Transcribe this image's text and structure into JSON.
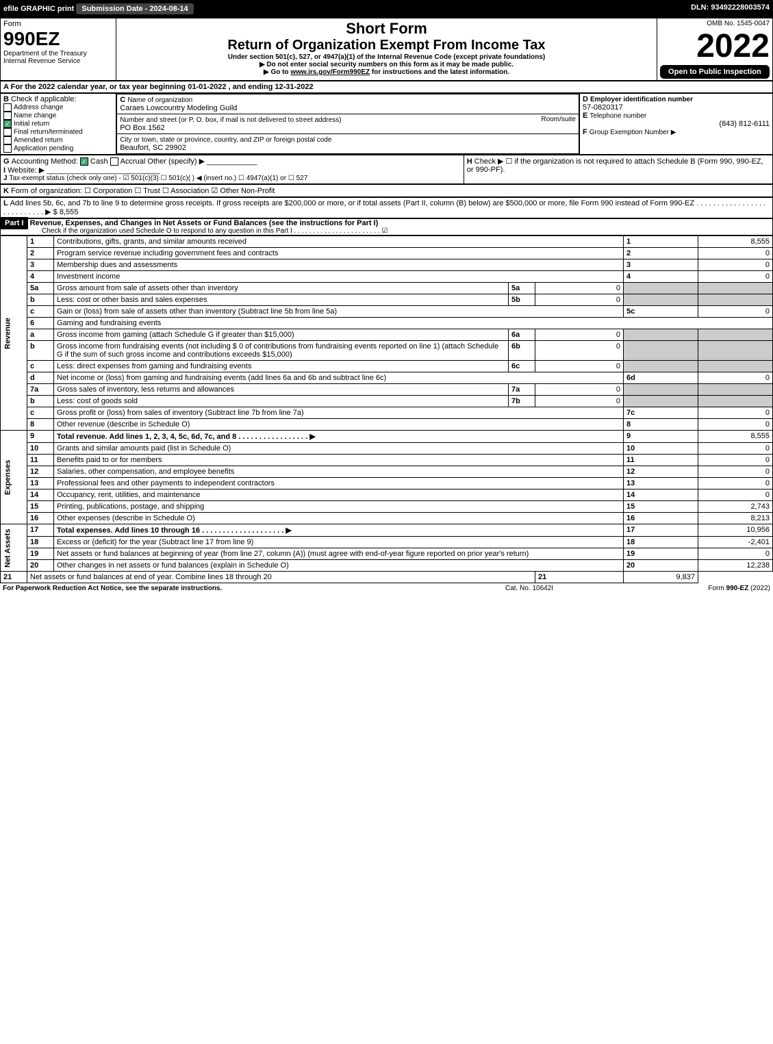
{
  "topbar": {
    "efile": "efile GRAPHIC print",
    "subdate": "Submission Date - 2024-08-14",
    "dln": "DLN: 93492228003574"
  },
  "header": {
    "form": "Form",
    "number": "990EZ",
    "dept": "Department of the Treasury",
    "irs": "Internal Revenue Service",
    "short": "Short Form",
    "title": "Return of Organization Exempt From Income Tax",
    "subtitle": "Under section 501(c), 527, or 4947(a)(1) of the Internal Revenue Code (except private foundations)",
    "warn1": "▶ Do not enter social security numbers on this form as it may be made public.",
    "warn2": "▶ Go to www.irs.gov/Form990EZ for instructions and the latest information.",
    "omb": "OMB No. 1545-0047",
    "year": "2022",
    "open": "Open to Public Inspection"
  },
  "A": "For the 2022 calendar year, or tax year beginning 01-01-2022 , and ending 12-31-2022",
  "B": {
    "label": "Check if applicable:",
    "opts": [
      "Address change",
      "Name change",
      "Initial return",
      "Final return/terminated",
      "Amended return",
      "Application pending"
    ],
    "checked": 2
  },
  "C": {
    "label": "Name of organization",
    "name": "Caraes Lowcountry Modeling Guild",
    "street_label": "Number and street (or P. O. box, if mail is not delivered to street address)",
    "street": "PO Box 1562",
    "room": "Room/suite",
    "city_label": "City or town, state or province, country, and ZIP or foreign postal code",
    "city": "Beaufort, SC  29902"
  },
  "D": {
    "label": "Employer identification number",
    "val": "57-0820317"
  },
  "E": {
    "label": "Telephone number",
    "val": "(843) 812-6111"
  },
  "F": {
    "label": "Group Exemption Number  ▶"
  },
  "G": {
    "label": "Accounting Method:",
    "cash": "Cash",
    "accrual": "Accrual",
    "other": "Other (specify) ▶"
  },
  "H": "Check ▶  ☐  if the organization is not required to attach Schedule B (Form 990, 990-EZ, or 990-PF).",
  "I": "Website: ▶",
  "J": "Tax-exempt status (check only one) - ☑ 501(c)(3) ☐ 501(c)(  ) ◀ (insert no.) ☐ 4947(a)(1) or ☐ 527",
  "K": "Form of organization:  ☐ Corporation  ☐ Trust  ☐ Association  ☑ Other Non-Profit",
  "L": "Add lines 5b, 6c, and 7b to line 9 to determine gross receipts. If gross receipts are $200,000 or more, or if total assets (Part II, column (B) below) are $500,000 or more, file Form 990 instead of Form 990-EZ  . . . . . . . . . . . . . . . . . . . . . . . . . . .  ▶ $ 8,555",
  "part1": {
    "title": "Revenue, Expenses, and Changes in Net Assets or Fund Balances (see the instructions for Part I)",
    "sub": "Check if the organization used Schedule O to respond to any question in this Part I . . . . . . . . . . . . . . . . . . . . . . .  ☑"
  },
  "sections": {
    "rev": "Revenue",
    "exp": "Expenses",
    "net": "Net Assets"
  },
  "lines": [
    {
      "n": "1",
      "t": "Contributions, gifts, grants, and similar amounts received",
      "r": "1",
      "v": "8,555"
    },
    {
      "n": "2",
      "t": "Program service revenue including government fees and contracts",
      "r": "2",
      "v": "0"
    },
    {
      "n": "3",
      "t": "Membership dues and assessments",
      "r": "3",
      "v": "0"
    },
    {
      "n": "4",
      "t": "Investment income",
      "r": "4",
      "v": "0"
    },
    {
      "n": "5a",
      "t": "Gross amount from sale of assets other than inventory",
      "mid": "5a",
      "mv": "0"
    },
    {
      "n": "b",
      "t": "Less: cost or other basis and sales expenses",
      "mid": "5b",
      "mv": "0"
    },
    {
      "n": "c",
      "t": "Gain or (loss) from sale of assets other than inventory (Subtract line 5b from line 5a)",
      "r": "5c",
      "v": "0"
    },
    {
      "n": "6",
      "t": "Gaming and fundraising events"
    },
    {
      "n": "a",
      "t": "Gross income from gaming (attach Schedule G if greater than $15,000)",
      "mid": "6a",
      "mv": "0"
    },
    {
      "n": "b",
      "t": "Gross income from fundraising events (not including $ 0   of contributions from fundraising events reported on line 1) (attach Schedule G if the sum of such gross income and contributions exceeds $15,000)",
      "mid": "6b",
      "mv": "0"
    },
    {
      "n": "c",
      "t": "Less: direct expenses from gaming and fundraising events",
      "mid": "6c",
      "mv": "0"
    },
    {
      "n": "d",
      "t": "Net income or (loss) from gaming and fundraising events (add lines 6a and 6b and subtract line 6c)",
      "r": "6d",
      "v": "0"
    },
    {
      "n": "7a",
      "t": "Gross sales of inventory, less returns and allowances",
      "mid": "7a",
      "mv": "0"
    },
    {
      "n": "b",
      "t": "Less: cost of goods sold",
      "mid": "7b",
      "mv": "0"
    },
    {
      "n": "c",
      "t": "Gross profit or (loss) from sales of inventory (Subtract line 7b from line 7a)",
      "r": "7c",
      "v": "0"
    },
    {
      "n": "8",
      "t": "Other revenue (describe in Schedule O)",
      "r": "8",
      "v": "0"
    },
    {
      "n": "9",
      "t": "Total revenue. Add lines 1, 2, 3, 4, 5c, 6d, 7c, and 8   . . . . . . . . . . . . . . . . .   ▶",
      "r": "9",
      "v": "8,555",
      "bold": true
    },
    {
      "n": "10",
      "t": "Grants and similar amounts paid (list in Schedule O)",
      "r": "10",
      "v": "0"
    },
    {
      "n": "11",
      "t": "Benefits paid to or for members",
      "r": "11",
      "v": "0"
    },
    {
      "n": "12",
      "t": "Salaries, other compensation, and employee benefits",
      "r": "12",
      "v": "0"
    },
    {
      "n": "13",
      "t": "Professional fees and other payments to independent contractors",
      "r": "13",
      "v": "0"
    },
    {
      "n": "14",
      "t": "Occupancy, rent, utilities, and maintenance",
      "r": "14",
      "v": "0"
    },
    {
      "n": "15",
      "t": "Printing, publications, postage, and shipping",
      "r": "15",
      "v": "2,743"
    },
    {
      "n": "16",
      "t": "Other expenses (describe in Schedule O)",
      "r": "16",
      "v": "8,213"
    },
    {
      "n": "17",
      "t": "Total expenses. Add lines 10 through 16     . . . . . . . . . . . . . . . . . . . .   ▶",
      "r": "17",
      "v": "10,956",
      "bold": true
    },
    {
      "n": "18",
      "t": "Excess or (deficit) for the year (Subtract line 17 from line 9)",
      "r": "18",
      "v": "-2,401"
    },
    {
      "n": "19",
      "t": "Net assets or fund balances at beginning of year (from line 27, column (A)) (must agree with end-of-year figure reported on prior year's return)",
      "r": "19",
      "v": "0"
    },
    {
      "n": "20",
      "t": "Other changes in net assets or fund balances (explain in Schedule O)",
      "r": "20",
      "v": "12,238"
    },
    {
      "n": "21",
      "t": "Net assets or fund balances at end of year. Combine lines 18 through 20",
      "r": "21",
      "v": "9,837"
    }
  ],
  "footer": {
    "pra": "For Paperwork Reduction Act Notice, see the separate instructions.",
    "cat": "Cat. No. 10642I",
    "form": "Form 990-EZ (2022)"
  }
}
